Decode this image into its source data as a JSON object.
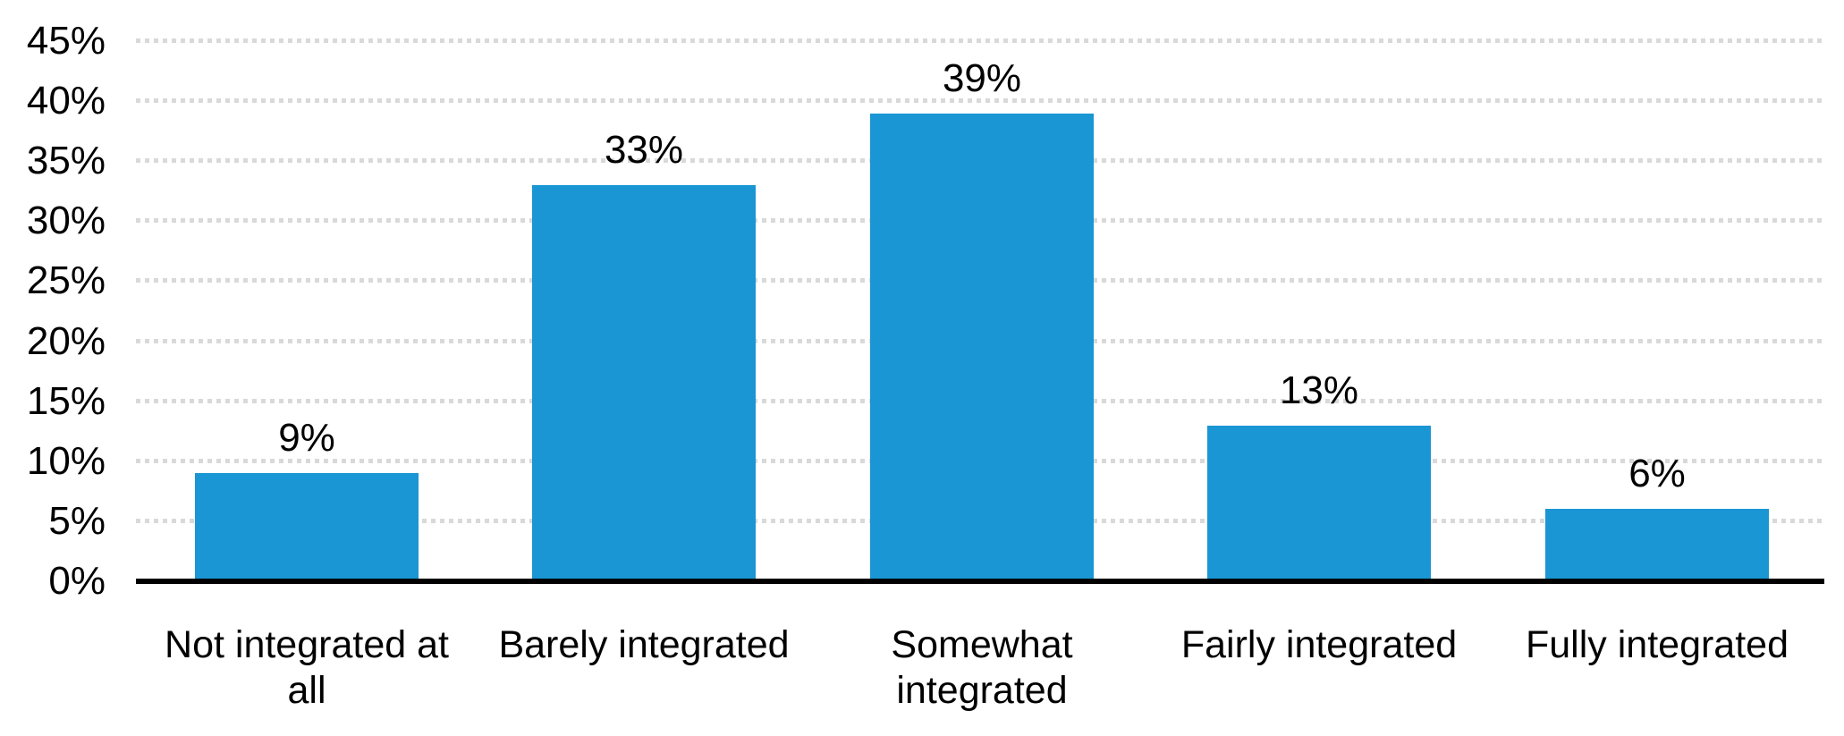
{
  "chart_data": {
    "type": "bar",
    "title": "",
    "xlabel": "",
    "ylabel": "",
    "categories": [
      "Not integrated at all",
      "Barely integrated",
      "Somewhat integrated",
      "Fairly integrated",
      "Fully integrated"
    ],
    "category_lines": [
      [
        "Not integrated at",
        "all"
      ],
      [
        "Barely integrated"
      ],
      [
        "Somewhat",
        "integrated"
      ],
      [
        "Fairly integrated"
      ],
      [
        "Fully integrated"
      ]
    ],
    "values": [
      9,
      33,
      39,
      13,
      6
    ],
    "value_labels": [
      "9%",
      "33%",
      "39%",
      "13%",
      "6%"
    ],
    "ylim": [
      0,
      45
    ],
    "ytick_step": 5,
    "yticks": [
      0,
      5,
      10,
      15,
      20,
      25,
      30,
      35,
      40,
      45
    ],
    "ytick_labels": [
      "0%",
      "5%",
      "10%",
      "15%",
      "20%",
      "25%",
      "30%",
      "35%",
      "40%",
      "45%"
    ],
    "grid": "horizontal-dotted",
    "legend": "none",
    "colors": {
      "bar": "#1996D3",
      "grid_dots": "#D9D9D9",
      "axis": "#000000",
      "text": "#000000",
      "background": "#FFFFFF"
    }
  }
}
